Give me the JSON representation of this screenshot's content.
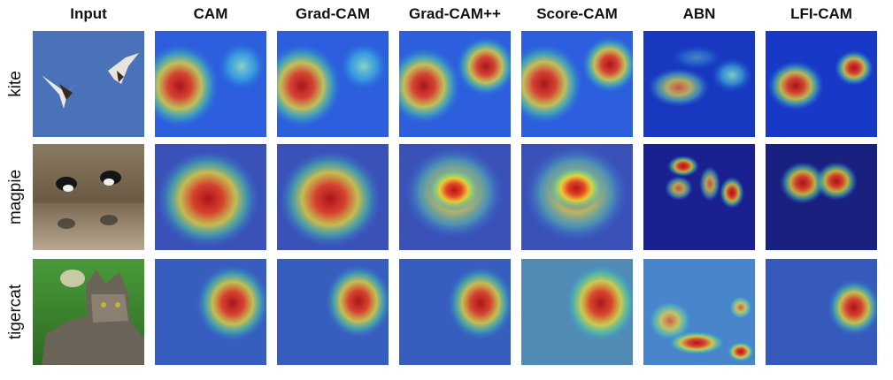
{
  "columns": [
    "Input",
    "CAM",
    "Grad-CAM",
    "Grad-CAM++",
    "Score-CAM",
    "ABN",
    "LFI-CAM"
  ],
  "rows": [
    "kite",
    "magpie",
    "tigercat"
  ]
}
